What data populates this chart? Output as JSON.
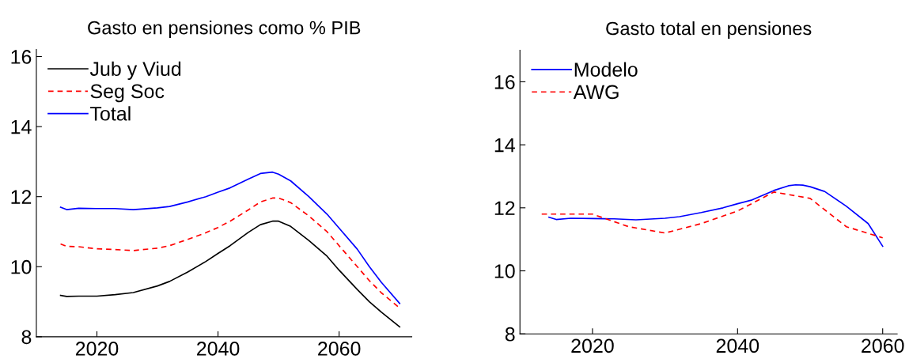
{
  "chart_data": [
    {
      "type": "line",
      "title": "Gasto en pensiones como % PIB",
      "xlim": [
        2010,
        2072
      ],
      "xticks": [
        2020,
        2040,
        2060
      ],
      "ylim": [
        8,
        16.2
      ],
      "yticks": [
        8,
        10,
        12,
        14,
        16
      ],
      "grid": false,
      "legend": "top left",
      "x": [
        2014,
        2015,
        2017,
        2020,
        2023,
        2026,
        2030,
        2032,
        2035,
        2038,
        2040,
        2042,
        2045,
        2047,
        2049,
        2050,
        2052,
        2055,
        2058,
        2060,
        2063,
        2065,
        2067,
        2070
      ],
      "series": [
        {
          "name": "Jub y Viud",
          "color": "#000000",
          "line_style": "solid",
          "values": [
            9.18,
            9.15,
            9.16,
            9.16,
            9.2,
            9.26,
            9.45,
            9.58,
            9.85,
            10.15,
            10.38,
            10.6,
            10.98,
            11.2,
            11.3,
            11.3,
            11.15,
            10.75,
            10.3,
            9.9,
            9.35,
            9.0,
            8.7,
            8.28
          ]
        },
        {
          "name": "Seg Soc",
          "color": "#ff0000",
          "line_style": "dashed",
          "values": [
            10.65,
            10.58,
            10.57,
            10.51,
            10.49,
            10.46,
            10.53,
            10.6,
            10.78,
            10.97,
            11.12,
            11.3,
            11.62,
            11.85,
            11.96,
            11.96,
            11.83,
            11.45,
            11.0,
            10.6,
            10.0,
            9.6,
            9.25,
            8.82
          ]
        },
        {
          "name": "Total",
          "color": "#0000ff",
          "line_style": "solid",
          "values": [
            11.7,
            11.63,
            11.67,
            11.66,
            11.66,
            11.63,
            11.68,
            11.72,
            11.85,
            12.0,
            12.13,
            12.25,
            12.5,
            12.66,
            12.7,
            12.64,
            12.45,
            12.0,
            11.5,
            11.1,
            10.5,
            10.0,
            9.55,
            8.95
          ]
        }
      ]
    },
    {
      "type": "line",
      "title": "Gasto total en pensiones",
      "xlim": [
        2010,
        2062
      ],
      "xticks": [
        2020,
        2040,
        2060
      ],
      "ylim": [
        8,
        17
      ],
      "yticks": [
        8,
        10,
        12,
        14,
        16
      ],
      "grid": false,
      "legend": "top left",
      "series": [
        {
          "name": "Modelo",
          "color": "#0000ff",
          "line_style": "solid",
          "x": [
            2014,
            2015,
            2017,
            2020,
            2023,
            2026,
            2030,
            2032,
            2035,
            2038,
            2040,
            2042,
            2045,
            2047,
            2048,
            2049,
            2050,
            2052,
            2055,
            2058,
            2060
          ],
          "values": [
            11.7,
            11.63,
            11.67,
            11.66,
            11.65,
            11.62,
            11.67,
            11.72,
            11.85,
            12.0,
            12.13,
            12.25,
            12.55,
            12.7,
            12.73,
            12.72,
            12.67,
            12.52,
            12.05,
            11.5,
            10.78
          ]
        },
        {
          "name": "AWG",
          "color": "#ff0000",
          "line_style": "dashed",
          "x": [
            2013,
            2020,
            2025,
            2030,
            2035,
            2040,
            2045,
            2050,
            2055,
            2060
          ],
          "values": [
            11.8,
            11.8,
            11.4,
            11.2,
            11.5,
            11.9,
            12.5,
            12.3,
            11.4,
            11.05
          ]
        }
      ]
    }
  ]
}
